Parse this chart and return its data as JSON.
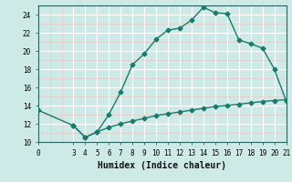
{
  "xlabel": "Humidex (Indice chaleur)",
  "bg_color": "#ceeae6",
  "line_color": "#1a7a6e",
  "grid_major_color": "#ffffff",
  "grid_minor_color": "#e8c8c8",
  "xlim": [
    0,
    21
  ],
  "ylim": [
    10,
    25
  ],
  "xticks": [
    0,
    3,
    4,
    5,
    6,
    7,
    8,
    9,
    10,
    11,
    12,
    13,
    14,
    15,
    16,
    17,
    18,
    19,
    20,
    21
  ],
  "yticks": [
    10,
    12,
    14,
    16,
    18,
    20,
    22,
    24
  ],
  "curve1_x": [
    0,
    3,
    4,
    5,
    6,
    7,
    8,
    9,
    10,
    11,
    12,
    13,
    14,
    15,
    16,
    17,
    18,
    19,
    20,
    21
  ],
  "curve1_y": [
    13.5,
    11.8,
    10.5,
    11.1,
    13.0,
    15.5,
    18.5,
    19.7,
    21.3,
    22.3,
    22.5,
    23.4,
    24.8,
    24.2,
    24.1,
    21.2,
    20.8,
    20.3,
    18.0,
    14.5
  ],
  "curve2_x": [
    3,
    4,
    5,
    6,
    7,
    8,
    9,
    10,
    11,
    12,
    13,
    14,
    15,
    16,
    17,
    18,
    19,
    20,
    21
  ],
  "curve2_y": [
    11.8,
    10.5,
    11.1,
    11.6,
    12.0,
    12.3,
    12.6,
    12.9,
    13.1,
    13.3,
    13.5,
    13.7,
    13.9,
    14.0,
    14.15,
    14.3,
    14.45,
    14.55,
    14.65
  ],
  "marker": "D",
  "markersize": 2.5,
  "linewidth": 1.0,
  "tick_fontsize": 5.5,
  "xlabel_fontsize": 7
}
